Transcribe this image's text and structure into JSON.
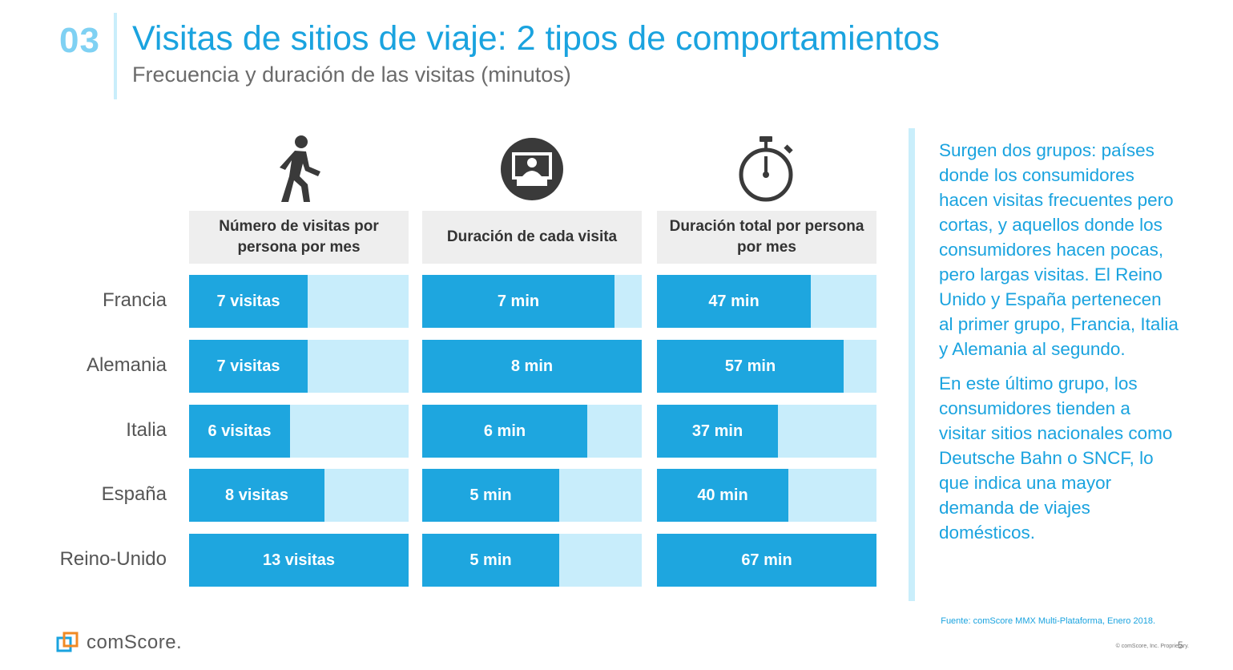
{
  "header": {
    "section_number": "03",
    "title": "Visitas de sitios de viaje: 2 tipos de comportamientos",
    "subtitle": "Frecuencia y duración de las visitas (minutos)"
  },
  "icons": [
    "walking-person-icon",
    "video-user-icon",
    "stopwatch-icon"
  ],
  "chart_data": {
    "type": "bar",
    "orientation": "horizontal",
    "categories": [
      "Francia",
      "Alemania",
      "Italia",
      "España",
      "Reino-Unido"
    ],
    "series": [
      {
        "name": "Número de visitas por persona por mes",
        "values": [
          7,
          7,
          6,
          8,
          13
        ],
        "labels": [
          "7 visitas",
          "7 visitas",
          "6 visitas",
          "8 visitas",
          "13 visitas"
        ],
        "max": 13
      },
      {
        "name": "Duración de cada visita",
        "values": [
          7,
          8,
          6,
          5,
          5
        ],
        "labels": [
          "7 min",
          "8 min",
          "6 min",
          "5 min",
          "5 min"
        ],
        "max": 8
      },
      {
        "name": "Duración total por persona por mes",
        "values": [
          47,
          57,
          37,
          40,
          67
        ],
        "labels": [
          "47 min",
          "57 min",
          "37 min",
          "40 min",
          "67 min"
        ],
        "max": 67
      }
    ],
    "colors": {
      "bar": "#1ea6df",
      "track": "#c8edfb",
      "header_bg": "#eeeeee"
    }
  },
  "sidebar": {
    "paragraphs": [
      "Surgen dos grupos: países donde los consumidores hacen visitas frecuentes pero cortas, y aquellos donde los consumidores hacen pocas, pero largas visitas. El Reino Unido y España pertenecen al primer grupo, Francia, Italia y Alemania al segundo.",
      "En este último grupo, los consumidores tienden a visitar sitios nacionales como Deutsche Bahn o SNCF, lo que indica una mayor demanda de viajes domésticos."
    ]
  },
  "footer": {
    "source": "Fuente: comScore MMX Multi-Plataforma, Enero 2018.",
    "logo_text": "comScore.",
    "copyright": "© comScore, Inc. Proprietary.",
    "page_number": "5"
  }
}
